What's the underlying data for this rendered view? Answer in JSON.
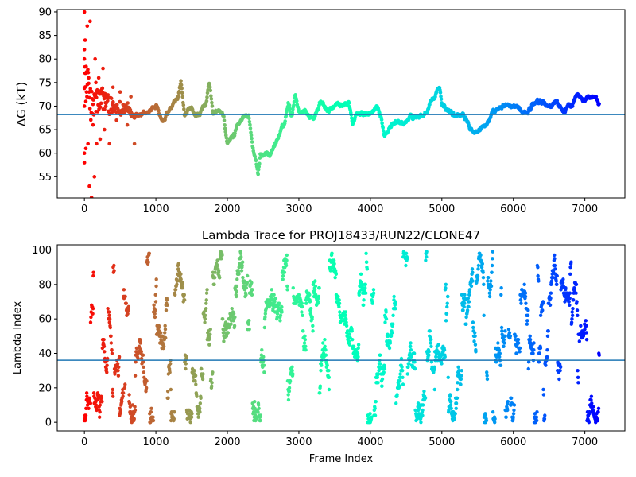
{
  "chart_data": [
    {
      "type": "scatter",
      "title": "",
      "xlabel": "",
      "ylabel": "ΔG (kT)",
      "xlim": [
        -380,
        7560
      ],
      "ylim": [
        50.5,
        90.5
      ],
      "xticks": [
        0,
        1000,
        2000,
        3000,
        4000,
        5000,
        6000,
        7000
      ],
      "yticks": [
        55,
        60,
        65,
        70,
        75,
        80,
        85,
        90
      ],
      "hline": 68.2,
      "hline_color": "#1f77b4",
      "colormap": "rainbow (reversed: red at frame 0, violet at last frame)",
      "n_frames": 7200,
      "trace_keypoints": [
        [
          0,
          78
        ],
        [
          100,
          70
        ],
        [
          200,
          71
        ],
        [
          300,
          71
        ],
        [
          400,
          69
        ],
        [
          500,
          70
        ],
        [
          600,
          70
        ],
        [
          700,
          67
        ],
        [
          800,
          68
        ],
        [
          900,
          69
        ],
        [
          1000,
          70
        ],
        [
          1100,
          66
        ],
        [
          1200,
          69
        ],
        [
          1300,
          71
        ],
        [
          1350,
          75
        ],
        [
          1400,
          68
        ],
        [
          1500,
          69
        ],
        [
          1600,
          68
        ],
        [
          1700,
          70
        ],
        [
          1750,
          75
        ],
        [
          1800,
          68
        ],
        [
          1900,
          69
        ],
        [
          1950,
          68
        ],
        [
          2000,
          62
        ],
        [
          2100,
          64
        ],
        [
          2150,
          67
        ],
        [
          2250,
          68
        ],
        [
          2300,
          68
        ],
        [
          2350,
          62
        ],
        [
          2400,
          58
        ],
        [
          2430,
          55
        ],
        [
          2460,
          60
        ],
        [
          2600,
          60
        ],
        [
          2700,
          63
        ],
        [
          2800,
          66
        ],
        [
          2850,
          71
        ],
        [
          2900,
          68
        ],
        [
          2950,
          73
        ],
        [
          3000,
          69
        ],
        [
          3100,
          69
        ],
        [
          3200,
          67
        ],
        [
          3300,
          71
        ],
        [
          3400,
          69
        ],
        [
          3500,
          70
        ],
        [
          3600,
          70
        ],
        [
          3700,
          71
        ],
        [
          3750,
          66
        ],
        [
          3800,
          68
        ],
        [
          3900,
          68
        ],
        [
          4000,
          69
        ],
        [
          4100,
          70
        ],
        [
          4150,
          68
        ],
        [
          4200,
          64
        ],
        [
          4300,
          66
        ],
        [
          4500,
          67
        ],
        [
          4700,
          68
        ],
        [
          4800,
          69
        ],
        [
          4900,
          72
        ],
        [
          4970,
          74
        ],
        [
          5000,
          70
        ],
        [
          5100,
          69
        ],
        [
          5200,
          68
        ],
        [
          5300,
          69
        ],
        [
          5400,
          66
        ],
        [
          5500,
          65
        ],
        [
          5600,
          66
        ],
        [
          5700,
          68
        ],
        [
          5800,
          69
        ],
        [
          5900,
          70
        ],
        [
          6000,
          70
        ],
        [
          6100,
          69
        ],
        [
          6200,
          69
        ],
        [
          6300,
          71
        ],
        [
          6400,
          71
        ],
        [
          6500,
          70
        ],
        [
          6600,
          71
        ],
        [
          6700,
          69
        ],
        [
          6800,
          70
        ],
        [
          6900,
          73
        ],
        [
          7000,
          72
        ],
        [
          7100,
          72
        ],
        [
          7200,
          70
        ]
      ],
      "early_points": [
        [
          0,
          90
        ],
        [
          0,
          82
        ],
        [
          0,
          80
        ],
        [
          0,
          70
        ],
        [
          0,
          60
        ],
        [
          0,
          58
        ],
        [
          10,
          84
        ],
        [
          10,
          77
        ],
        [
          20,
          61
        ],
        [
          20,
          71
        ],
        [
          30,
          73
        ],
        [
          40,
          87
        ],
        [
          50,
          62
        ],
        [
          60,
          76
        ],
        [
          70,
          53
        ],
        [
          80,
          88
        ],
        [
          100,
          50.6
        ],
        [
          120,
          66
        ],
        [
          140,
          55
        ],
        [
          150,
          80
        ],
        [
          160,
          75
        ],
        [
          170,
          62
        ],
        [
          180,
          73
        ],
        [
          200,
          76
        ],
        [
          220,
          63
        ],
        [
          260,
          78
        ],
        [
          280,
          65
        ],
        [
          300,
          72
        ],
        [
          350,
          62
        ],
        [
          400,
          74
        ],
        [
          450,
          67
        ],
        [
          500,
          73
        ],
        [
          550,
          70
        ],
        [
          600,
          66
        ],
        [
          650,
          72
        ],
        [
          700,
          62
        ]
      ]
    },
    {
      "type": "scatter",
      "title": "Lambda Trace for PROJ18433/RUN22/CLONE47",
      "xlabel": "Frame Index",
      "ylabel": "Lambda Index",
      "xlim": [
        -380,
        7560
      ],
      "ylim": [
        -5,
        103
      ],
      "xticks": [
        0,
        1000,
        2000,
        3000,
        4000,
        5000,
        6000,
        7000
      ],
      "yticks": [
        0,
        20,
        40,
        60,
        80,
        100
      ],
      "hline": 36,
      "hline_color": "#1f77b4",
      "colormap": "rainbow (reversed: red at frame 0, violet at last frame)",
      "n_frames": 7200,
      "lambda_range": [
        0,
        99
      ]
    }
  ]
}
